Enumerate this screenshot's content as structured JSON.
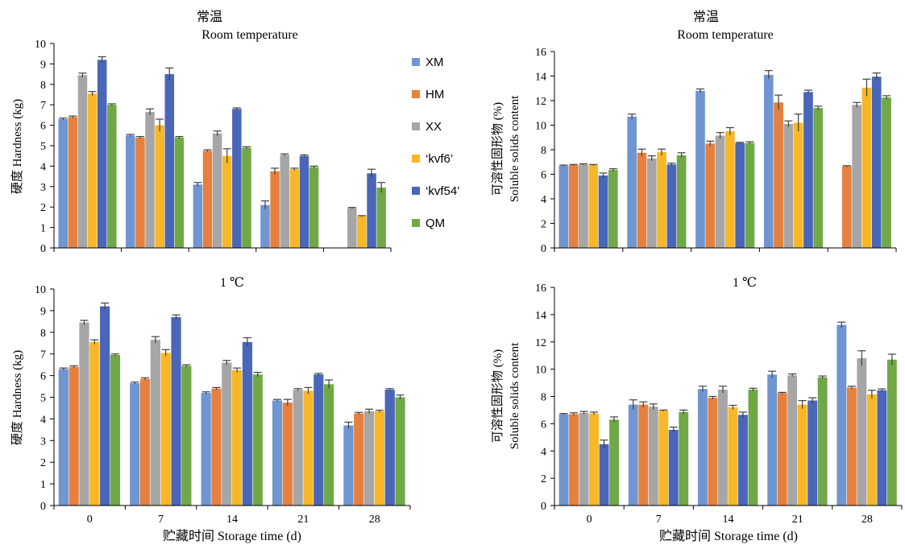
{
  "colors": {
    "XM": "#7096d2",
    "HM": "#e5803e",
    "XX": "#a6a6a6",
    "kvf6": "#f7b728",
    "kvf54": "#4a66b8",
    "QM": "#70a848",
    "error_bar": "#404040",
    "axis": "#000000"
  },
  "legend": {
    "items": [
      {
        "key": "XM",
        "label": "XM"
      },
      {
        "key": "HM",
        "label": "HM"
      },
      {
        "key": "XX",
        "label": "XX"
      },
      {
        "key": "kvf6",
        "label": "‘kvf6’"
      },
      {
        "key": "kvf54",
        "label": "‘kvf54’"
      },
      {
        "key": "QM",
        "label": "QM"
      }
    ]
  },
  "chart_data": [
    {
      "type": "bar",
      "title": "常温",
      "subtitle": "Room temperature",
      "ylabel": "硬度 Hardness (kg)",
      "xlabel": "",
      "categories": [
        "0",
        "7",
        "14",
        "21",
        "28"
      ],
      "show_x_tick_labels": false,
      "ylim": [
        0,
        10
      ],
      "yticks": [
        0,
        1,
        2,
        3,
        4,
        5,
        6,
        7,
        8,
        9,
        10
      ],
      "grid": false,
      "series": [
        {
          "key": "XM",
          "name": "XM",
          "values": [
            6.3,
            5.5,
            3.1,
            2.1,
            null
          ],
          "errors": [
            0.05,
            0.05,
            0.1,
            0.2,
            null
          ]
        },
        {
          "key": "HM",
          "name": "HM",
          "values": [
            6.4,
            5.4,
            4.75,
            3.75,
            null
          ],
          "errors": [
            0.05,
            0.05,
            0.05,
            0.15,
            null
          ]
        },
        {
          "key": "XX",
          "name": "XX",
          "values": [
            8.45,
            6.65,
            5.6,
            4.55,
            1.95
          ],
          "errors": [
            0.1,
            0.15,
            0.12,
            0.05,
            0.03
          ]
        },
        {
          "key": "kvf6",
          "name": "‘kvf6’",
          "values": [
            7.55,
            6.0,
            4.5,
            3.85,
            1.55
          ],
          "errors": [
            0.1,
            0.3,
            0.35,
            0.05,
            0.03
          ]
        },
        {
          "key": "kvf54",
          "name": "‘kvf54’",
          "values": [
            9.2,
            8.5,
            6.8,
            4.5,
            3.65
          ],
          "errors": [
            0.15,
            0.3,
            0.05,
            0.05,
            0.2
          ]
        },
        {
          "key": "QM",
          "name": "QM",
          "values": [
            7.0,
            5.4,
            4.9,
            3.95,
            2.95
          ],
          "errors": [
            0.05,
            0.05,
            0.05,
            0.05,
            0.25
          ]
        }
      ]
    },
    {
      "type": "bar",
      "title": "常温",
      "subtitle": "Room temperature",
      "ylabel_cn": "可溶性固形物 (%)",
      "ylabel_en": "Soluble solids content",
      "xlabel": "",
      "categories": [
        "0",
        "7",
        "14",
        "21",
        "28"
      ],
      "show_x_tick_labels": false,
      "ylim": [
        0,
        16
      ],
      "yticks": [
        0,
        2,
        4,
        6,
        8,
        10,
        12,
        14,
        16
      ],
      "grid": false,
      "series": [
        {
          "key": "XM",
          "name": "XM",
          "values": [
            6.7,
            10.7,
            12.8,
            14.1,
            null
          ],
          "errors": [
            0.05,
            0.2,
            0.15,
            0.35,
            null
          ]
        },
        {
          "key": "HM",
          "name": "HM",
          "values": [
            6.75,
            7.75,
            8.5,
            11.85,
            6.65
          ],
          "errors": [
            0.05,
            0.3,
            0.2,
            0.6,
            0.05
          ]
        },
        {
          "key": "XX",
          "name": "XX",
          "values": [
            6.8,
            7.3,
            9.15,
            10.1,
            11.65
          ],
          "errors": [
            0.05,
            0.2,
            0.25,
            0.25,
            0.2
          ]
        },
        {
          "key": "kvf6",
          "name": "‘kvf6’",
          "values": [
            6.75,
            7.8,
            9.5,
            10.2,
            13.05
          ],
          "errors": [
            0.05,
            0.25,
            0.3,
            0.7,
            0.7
          ]
        },
        {
          "key": "kvf54",
          "name": "‘kvf54’",
          "values": [
            5.9,
            6.8,
            8.55,
            12.7,
            13.95
          ],
          "errors": [
            0.2,
            0.1,
            0.05,
            0.15,
            0.3
          ]
        },
        {
          "key": "QM",
          "name": "QM",
          "values": [
            6.35,
            7.55,
            8.55,
            11.4,
            12.25
          ],
          "errors": [
            0.1,
            0.2,
            0.1,
            0.15,
            0.15
          ]
        }
      ]
    },
    {
      "type": "bar",
      "title": "1 ℃",
      "subtitle": "",
      "ylabel": "硬度 Hardness (kg)",
      "xlabel": "贮藏时间 Storage time (d)",
      "categories": [
        "0",
        "7",
        "14",
        "21",
        "28"
      ],
      "show_x_tick_labels": true,
      "ylim": [
        0,
        10
      ],
      "yticks": [
        0,
        1,
        2,
        3,
        4,
        5,
        6,
        7,
        8,
        9,
        10
      ],
      "grid": false,
      "series": [
        {
          "key": "XM",
          "name": "XM",
          "values": [
            6.3,
            5.65,
            5.2,
            4.85,
            3.7
          ],
          "errors": [
            0.05,
            0.05,
            0.05,
            0.05,
            0.15
          ]
        },
        {
          "key": "HM",
          "name": "HM",
          "values": [
            6.4,
            5.85,
            5.4,
            4.75,
            4.25
          ],
          "errors": [
            0.05,
            0.05,
            0.05,
            0.15,
            0.05
          ]
        },
        {
          "key": "XX",
          "name": "XX",
          "values": [
            8.45,
            7.65,
            6.6,
            5.35,
            4.35
          ],
          "errors": [
            0.1,
            0.15,
            0.1,
            0.05,
            0.1
          ]
        },
        {
          "key": "kvf6",
          "name": "‘kvf6’",
          "values": [
            7.55,
            7.05,
            6.25,
            5.3,
            4.35
          ],
          "errors": [
            0.1,
            0.15,
            0.1,
            0.15,
            0.05
          ]
        },
        {
          "key": "kvf54",
          "name": "‘kvf54’",
          "values": [
            9.2,
            8.7,
            7.55,
            6.05,
            5.35
          ],
          "errors": [
            0.15,
            0.1,
            0.2,
            0.05,
            0.05
          ]
        },
        {
          "key": "QM",
          "name": "QM",
          "values": [
            6.95,
            6.45,
            6.05,
            5.6,
            5.0
          ],
          "errors": [
            0.05,
            0.05,
            0.1,
            0.2,
            0.1
          ]
        }
      ]
    },
    {
      "type": "bar",
      "title": "1 ℃",
      "subtitle": "",
      "ylabel_cn": "可溶性固形物 (%)",
      "ylabel_en": "Soluble solids content",
      "xlabel": "贮藏时间 Storage time (d)",
      "categories": [
        "0",
        "7",
        "14",
        "21",
        "28"
      ],
      "show_x_tick_labels": true,
      "ylim": [
        0,
        16
      ],
      "yticks": [
        0,
        2,
        4,
        6,
        8,
        10,
        12,
        14,
        16
      ],
      "grid": false,
      "series": [
        {
          "key": "XM",
          "name": "XM",
          "values": [
            6.7,
            7.4,
            8.55,
            9.6,
            13.25
          ],
          "errors": [
            0.05,
            0.35,
            0.2,
            0.25,
            0.2
          ]
        },
        {
          "key": "HM",
          "name": "HM",
          "values": [
            6.7,
            7.4,
            7.9,
            8.25,
            8.65
          ],
          "errors": [
            0.1,
            0.2,
            0.1,
            0.05,
            0.1
          ]
        },
        {
          "key": "XX",
          "name": "XX",
          "values": [
            6.8,
            7.25,
            8.5,
            9.55,
            10.8
          ],
          "errors": [
            0.1,
            0.2,
            0.25,
            0.1,
            0.55
          ]
        },
        {
          "key": "kvf6",
          "name": "‘kvf6’",
          "values": [
            6.75,
            6.95,
            7.2,
            7.4,
            8.15
          ],
          "errors": [
            0.1,
            0.05,
            0.15,
            0.3,
            0.3
          ]
        },
        {
          "key": "kvf54",
          "name": "‘kvf54’",
          "values": [
            4.5,
            5.55,
            6.65,
            7.7,
            8.45
          ],
          "errors": [
            0.3,
            0.2,
            0.2,
            0.2,
            0.1
          ]
        },
        {
          "key": "QM",
          "name": "QM",
          "values": [
            6.3,
            6.85,
            8.5,
            9.4,
            10.7
          ],
          "errors": [
            0.2,
            0.15,
            0.1,
            0.1,
            0.4
          ]
        }
      ]
    }
  ]
}
